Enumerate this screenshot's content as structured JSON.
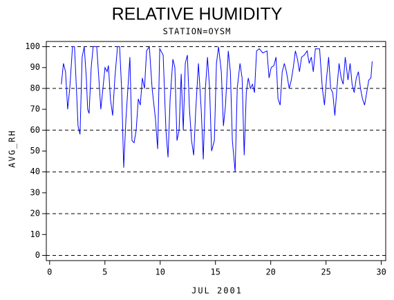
{
  "chart_data": {
    "type": "line",
    "title": "RELATIVE HUMIDITY",
    "subtitle": "STATION=OYSM",
    "y_label": "AVG_RH",
    "x_label": "JUL 2001",
    "xlim": [
      -0.3,
      30.4
    ],
    "ylim": [
      -2.5,
      102.5
    ],
    "xticks": [
      0,
      5,
      10,
      15,
      20,
      25,
      30
    ],
    "yticks": [
      0,
      10,
      20,
      30,
      40,
      50,
      60,
      70,
      80,
      90,
      100
    ],
    "ygrid": [
      0,
      20,
      40,
      60,
      80,
      100
    ],
    "color": "#0000ff",
    "x": [
      1.06,
      1.25,
      1.44,
      1.63,
      1.82,
      2.07,
      2.25,
      2.44,
      2.57,
      2.75,
      2.94,
      3.13,
      3.32,
      3.44,
      3.57,
      3.76,
      3.94,
      4.26,
      4.45,
      4.63,
      4.82,
      5.01,
      5.2,
      5.32,
      5.5,
      5.7,
      5.9,
      6.14,
      6.33,
      6.51,
      6.7,
      6.9,
      7.08,
      7.26,
      7.45,
      7.64,
      7.83,
      8.02,
      8.2,
      8.39,
      8.58,
      8.77,
      9.02,
      9.27,
      9.58,
      9.77,
      9.96,
      10.27,
      10.52,
      10.71,
      10.9,
      11.15,
      11.33,
      11.52,
      11.71,
      11.9,
      12.09,
      12.27,
      12.46,
      12.65,
      12.84,
      13.03,
      13.22,
      13.46,
      13.71,
      13.9,
      14.09,
      14.28,
      14.47,
      14.65,
      14.9,
      15.09,
      15.28,
      15.53,
      15.72,
      15.91,
      16.16,
      16.35,
      16.53,
      16.78,
      16.97,
      17.22,
      17.41,
      17.6,
      17.79,
      17.97,
      18.16,
      18.35,
      18.53,
      18.72,
      18.97,
      19.28,
      19.66,
      19.85,
      20.04,
      20.29,
      20.48,
      20.66,
      20.85,
      21.04,
      21.23,
      21.42,
      21.67,
      21.86,
      22.04,
      22.23,
      22.42,
      22.6,
      22.79,
      23.04,
      23.29,
      23.48,
      23.67,
      23.85,
      24.04,
      24.42,
      24.67,
      24.86,
      25.05,
      25.24,
      25.42,
      25.61,
      25.8,
      25.99,
      26.18,
      26.37,
      26.55,
      26.74,
      26.99,
      27.18,
      27.36,
      27.55,
      27.74,
      27.93,
      28.12,
      28.3,
      28.49,
      28.68,
      28.87,
      29.06,
      29.18
    ],
    "values": [
      82,
      92,
      88,
      70,
      80,
      100,
      100,
      78,
      62,
      58,
      95,
      100,
      85,
      70,
      68,
      90,
      100,
      100,
      85,
      70,
      80,
      90,
      88,
      91,
      75,
      67,
      85,
      100,
      100,
      80,
      42,
      65,
      80,
      95,
      55,
      54,
      60,
      75,
      72,
      85,
      80,
      98,
      100,
      80,
      65,
      51,
      99,
      96,
      60,
      47,
      75,
      94,
      90,
      55,
      60,
      87,
      60,
      92,
      96,
      70,
      55,
      48,
      70,
      92,
      70,
      46,
      80,
      95,
      80,
      50,
      55,
      92,
      100,
      88,
      62,
      72,
      98,
      88,
      55,
      40,
      80,
      92,
      85,
      48,
      78,
      85,
      80,
      82,
      78,
      98,
      99,
      97,
      98,
      85,
      90,
      91,
      95,
      75,
      72,
      88,
      92,
      88,
      80,
      84,
      90,
      98,
      94,
      88,
      95,
      96,
      98,
      92,
      95,
      88,
      99,
      99,
      80,
      72,
      85,
      95,
      80,
      78,
      67,
      80,
      92,
      85,
      82,
      95,
      84,
      92,
      82,
      78,
      85,
      88,
      80,
      75,
      72,
      78,
      84,
      85,
      93
    ]
  }
}
